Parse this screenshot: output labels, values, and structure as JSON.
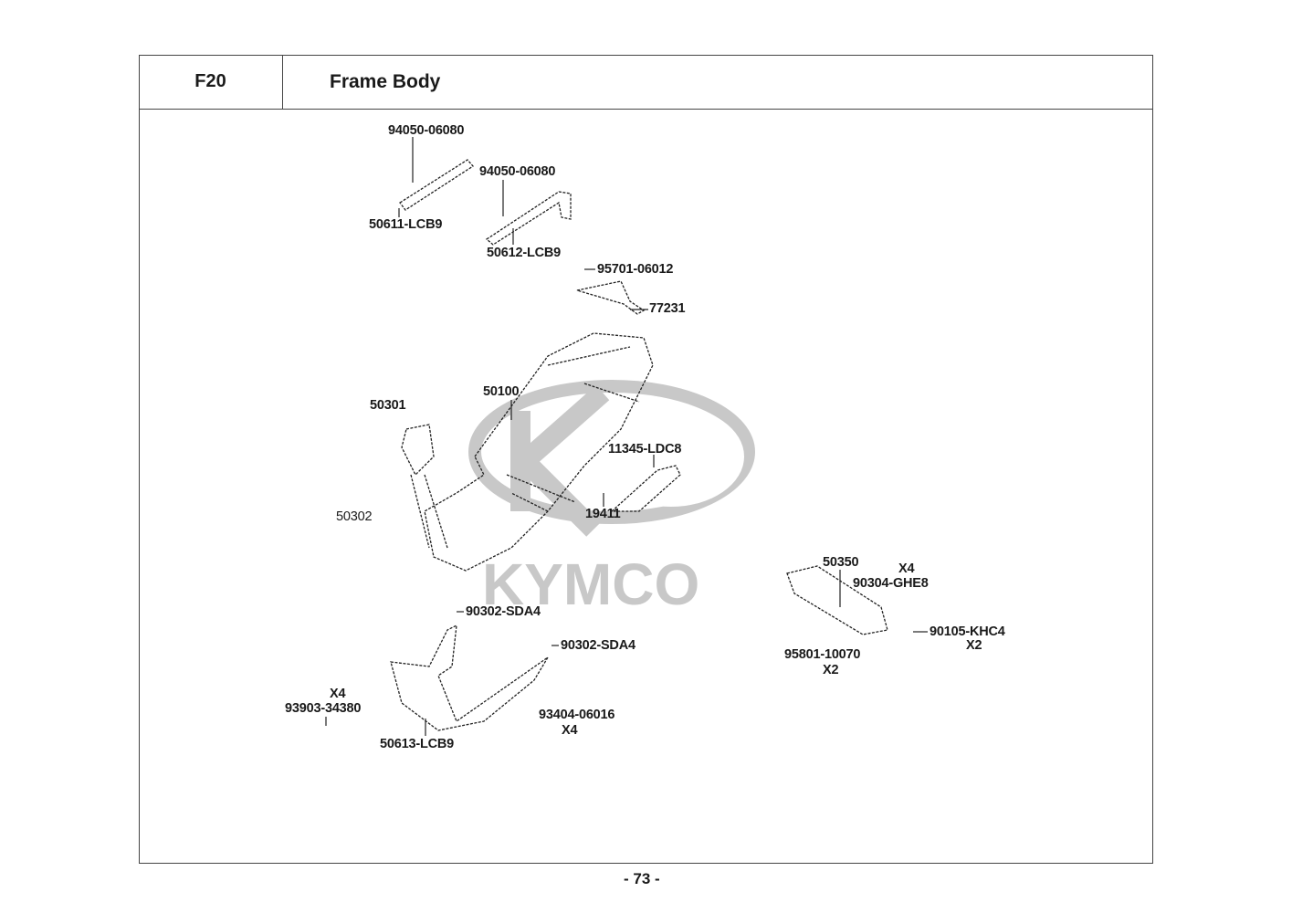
{
  "header": {
    "code": "F20",
    "title": "Frame Body"
  },
  "watermark": {
    "brand": "KYMCO",
    "color": "#c8c8c8"
  },
  "parts": [
    {
      "id": "p1",
      "label": "94050-06080"
    },
    {
      "id": "p2",
      "label": "94050-06080"
    },
    {
      "id": "p3",
      "label": "50611-LCB9"
    },
    {
      "id": "p4",
      "label": "50612-LCB9"
    },
    {
      "id": "p5",
      "label": "95701-06012"
    },
    {
      "id": "p6",
      "label": "77231"
    },
    {
      "id": "p7",
      "label": "50301"
    },
    {
      "id": "p8",
      "label": "50100"
    },
    {
      "id": "p9",
      "label": "11345-LDC8"
    },
    {
      "id": "p10",
      "label": "19411"
    },
    {
      "id": "p11",
      "label": "50302"
    },
    {
      "id": "p12",
      "label": "50350"
    },
    {
      "id": "p13",
      "label": "X4"
    },
    {
      "id": "p14",
      "label": "90304-GHE8"
    },
    {
      "id": "p15",
      "label": "90105-KHC4"
    },
    {
      "id": "p16",
      "label": "X2"
    },
    {
      "id": "p17",
      "label": "95801-10070"
    },
    {
      "id": "p18",
      "label": "X2"
    },
    {
      "id": "p19",
      "label": "90302-SDA4"
    },
    {
      "id": "p20",
      "label": "90302-SDA4"
    },
    {
      "id": "p21",
      "label": "X4"
    },
    {
      "id": "p22",
      "label": "93903-34380"
    },
    {
      "id": "p23",
      "label": "50613-LCB9"
    },
    {
      "id": "p24",
      "label": "93404-06016"
    },
    {
      "id": "p25",
      "label": "X4"
    }
  ],
  "footer": {
    "page_number": "- 73 -"
  }
}
